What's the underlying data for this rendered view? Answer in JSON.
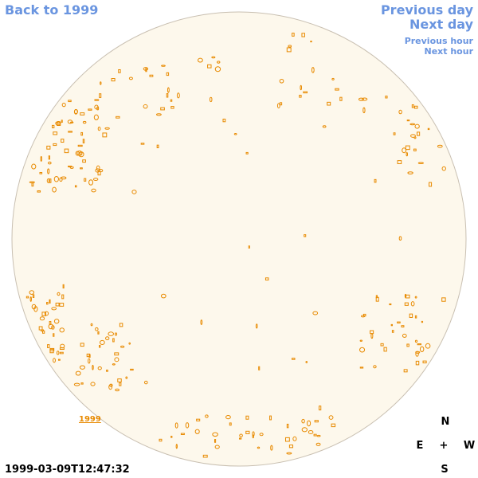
{
  "navigation": {
    "back": "Back to 1999",
    "previous_day": "Previous day",
    "next_day": "Next day",
    "previous_hour": "Previous hour",
    "next_hour": "Next hour"
  },
  "image": {
    "year_label": "1999",
    "timestamp": "1999-03-09T12:47:32"
  },
  "compass": {
    "north": "N",
    "east": "E",
    "center": "+",
    "west": "W",
    "south": "S"
  }
}
